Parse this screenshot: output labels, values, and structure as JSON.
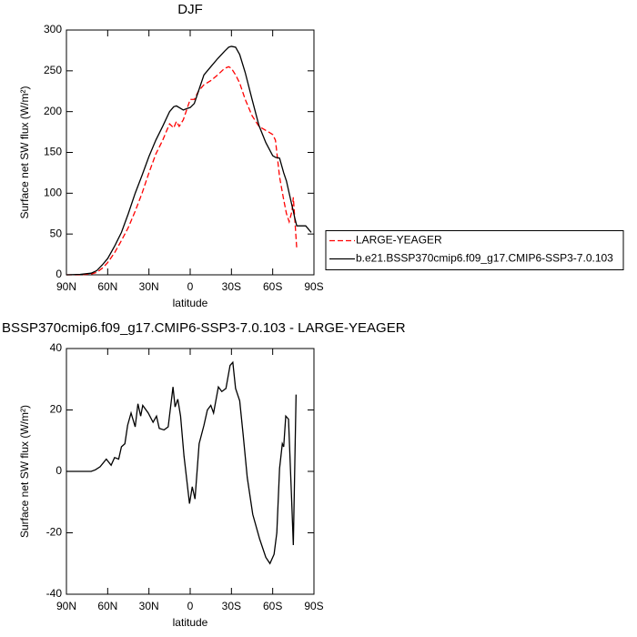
{
  "chart_data": [
    {
      "type": "line",
      "title": "DJF",
      "xlabel": "latitude",
      "ylabel": "Surface net SW flux (W/m²)",
      "xlim": [
        90,
        -90
      ],
      "xticks": [
        {
          "value": 90,
          "label": "90N"
        },
        {
          "value": 60,
          "label": "60N"
        },
        {
          "value": 30,
          "label": "30N"
        },
        0,
        {
          "value": -30,
          "label": "30S"
        },
        {
          "value": -60,
          "label": "60S"
        },
        {
          "value": -90,
          "label": "90S"
        }
      ],
      "ylim": [
        0,
        300
      ],
      "yticks": [
        0,
        50,
        100,
        150,
        200,
        250,
        300
      ],
      "legend": "right",
      "x": [
        90,
        80,
        72,
        68,
        64,
        60,
        55,
        50,
        45,
        40,
        35,
        30,
        25,
        20,
        15,
        12,
        10,
        8,
        5,
        2,
        0,
        -3,
        -6,
        -10,
        -15,
        -20,
        -25,
        -28,
        -30,
        -33,
        -36,
        -40,
        -45,
        -50,
        -55,
        -60,
        -62,
        -65,
        -68,
        -70,
        -72,
        -74,
        -75,
        -76,
        -77.5,
        -80,
        -84,
        -88
      ],
      "series": [
        {
          "name": "LARGE-YEAGER",
          "color": "#ff0000",
          "line_style": "dashed",
          "values": [
            0,
            0,
            1,
            3,
            8,
            15,
            27,
            42,
            58,
            78,
            100,
            125,
            148,
            165,
            185,
            180,
            188,
            182,
            190,
            205,
            215,
            215,
            225,
            233,
            238,
            245,
            253,
            255,
            253,
            245,
            235,
            215,
            195,
            182,
            177,
            172,
            165,
            120,
            92,
            75,
            65,
            78,
            95,
            70,
            32,
            null,
            null,
            null
          ]
        },
        {
          "name": "b.e21.BSSP370cmip6.f09_g17.CMIP6-SSP3-7.0.103",
          "color": "#000000",
          "line_style": "solid",
          "values": [
            0,
            0.5,
            2,
            5,
            12,
            20,
            35,
            52,
            75,
            100,
            122,
            145,
            165,
            182,
            200,
            206,
            207,
            205,
            202,
            204,
            205,
            210,
            225,
            245,
            255,
            265,
            274,
            279,
            280,
            279,
            270,
            248,
            215,
            183,
            162,
            146,
            144,
            143,
            125,
            115,
            100,
            85,
            78,
            70,
            60,
            60,
            60,
            52
          ]
        }
      ]
    },
    {
      "type": "line",
      "title": "BSSP370cmip6.f09_g17.CMIP6-SSP3-7.0.103 - LARGE-YEAGER",
      "xlabel": "latitude",
      "ylabel": "Surface net SW flux (W/m²)",
      "xlim": [
        90,
        -90
      ],
      "xticks": [
        {
          "value": 90,
          "label": "90N"
        },
        {
          "value": 60,
          "label": "60N"
        },
        {
          "value": 30,
          "label": "30N"
        },
        0,
        {
          "value": -30,
          "label": "30S"
        },
        {
          "value": -60,
          "label": "60S"
        },
        {
          "value": -90,
          "label": "90S"
        }
      ],
      "ylim": [
        -40,
        40
      ],
      "yticks": [
        -40,
        -20,
        0,
        20,
        40
      ],
      "x": [
        90,
        72,
        69,
        65.5,
        61,
        57.5,
        55,
        52,
        50,
        47.5,
        45.5,
        43,
        40,
        38,
        36,
        34.5,
        30.5,
        27,
        24.5,
        22.5,
        19,
        16,
        12.5,
        11,
        9,
        7,
        4.5,
        0.5,
        -1.5,
        -3.5,
        -6.5,
        -10,
        -12.5,
        -15,
        -17,
        -20.5,
        -23,
        -26,
        -29,
        -31,
        -33,
        -36,
        -38.5,
        -41.5,
        -45.5,
        -50.5,
        -55,
        -58,
        -61,
        -63,
        -65,
        -67,
        -68,
        -69.5,
        -71.5,
        -73.5,
        -75,
        -77
      ],
      "series": [
        {
          "color": "#000000",
          "line_style": "solid",
          "values": [
            0,
            0,
            0.5,
            1.5,
            4,
            2,
            4.5,
            4,
            8,
            9,
            15,
            19,
            14.5,
            22,
            18,
            21.5,
            19,
            16,
            18,
            14,
            13.5,
            14.5,
            27.5,
            21,
            23.5,
            18,
            5,
            -10.5,
            -5,
            -9,
            9,
            15,
            20,
            21.5,
            19,
            27.5,
            26,
            27,
            34.5,
            35.5,
            27,
            23,
            12,
            -2,
            -14,
            -22,
            -28,
            -30,
            -27,
            -20,
            1,
            9,
            8,
            18,
            17,
            -6,
            -24,
            25
          ]
        }
      ]
    }
  ]
}
